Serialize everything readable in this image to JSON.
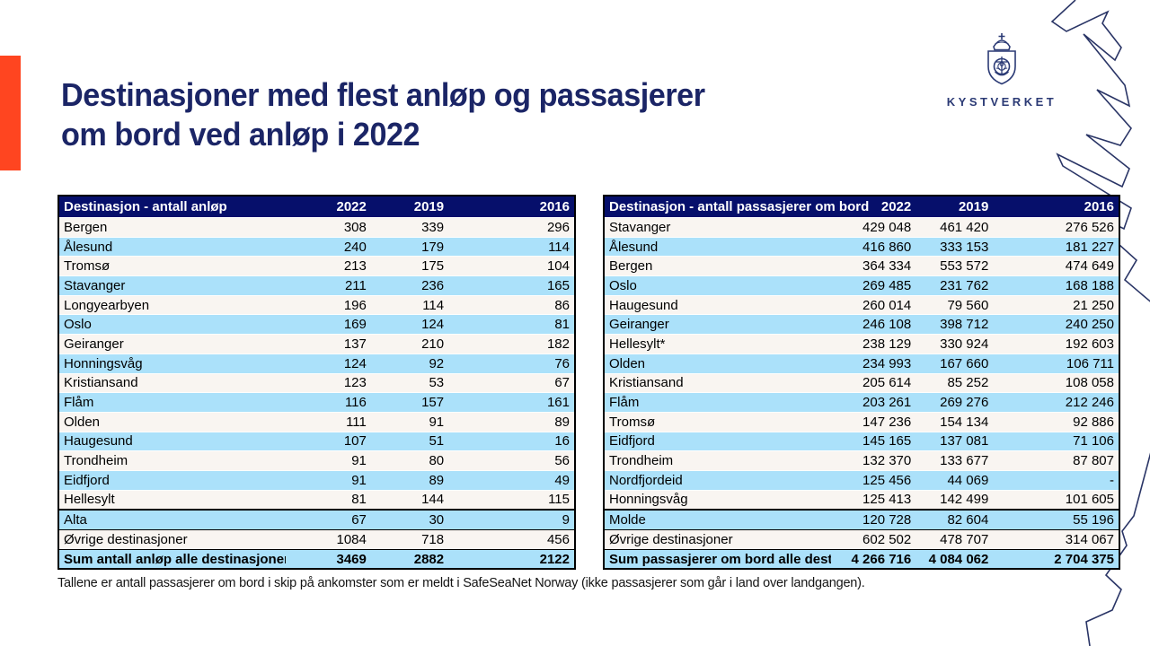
{
  "slide": {
    "title_line1": "Destinasjoner med flest anløp og passasjerer",
    "title_line2": "om bord ved anløp i 2022",
    "footnote": "Tallene er antall passasjerer om bord i skip på ankomster som er meldt i SafeSeaNet Norway (ikke passasjerer som går i land over landgangen).",
    "logo_text": "KYSTVERKET"
  },
  "colors": {
    "accent_bar": "#FF4520",
    "title_navy": "#1B2566",
    "table_header_bg": "#060F6B",
    "row_blue": "#ABE1FA",
    "row_white": "#F9F5F1",
    "logo_navy": "#2B3A75",
    "coastline": "#2A3566"
  },
  "tables": [
    {
      "header": "Destinasjon - antall anløp",
      "years": [
        "2022",
        "2019",
        "2016"
      ],
      "rows": [
        {
          "name": "Bergen",
          "values": [
            "308",
            "339",
            "296"
          ]
        },
        {
          "name": "Ålesund",
          "values": [
            "240",
            "179",
            "114"
          ]
        },
        {
          "name": "Tromsø",
          "values": [
            "213",
            "175",
            "104"
          ]
        },
        {
          "name": "Stavanger",
          "values": [
            "211",
            "236",
            "165"
          ]
        },
        {
          "name": "Longyearbyen",
          "values": [
            "196",
            "114",
            "86"
          ]
        },
        {
          "name": "Oslo",
          "values": [
            "169",
            "124",
            "81"
          ]
        },
        {
          "name": "Geiranger",
          "values": [
            "137",
            "210",
            "182"
          ]
        },
        {
          "name": "Honningsvåg",
          "values": [
            "124",
            "92",
            "76"
          ]
        },
        {
          "name": "Kristiansand",
          "values": [
            "123",
            "53",
            "67"
          ]
        },
        {
          "name": "Flåm",
          "values": [
            "116",
            "157",
            "161"
          ]
        },
        {
          "name": "Olden",
          "values": [
            "111",
            "91",
            "89"
          ]
        },
        {
          "name": "Haugesund",
          "values": [
            "107",
            "51",
            "16"
          ]
        },
        {
          "name": "Trondheim",
          "values": [
            "91",
            "80",
            "56"
          ]
        },
        {
          "name": "Eidfjord",
          "values": [
            "91",
            "89",
            "49"
          ]
        },
        {
          "name": "Hellesylt",
          "values": [
            "81",
            "144",
            "115"
          ]
        },
        {
          "name": "Alta",
          "values": [
            "67",
            "30",
            "9"
          ]
        },
        {
          "name": "Øvrige destinasjoner",
          "values": [
            "1084",
            "718",
            "456"
          ]
        },
        {
          "name": "Sum antall anløp alle destinasjoner",
          "values": [
            "3469",
            "2882",
            "2122"
          ]
        }
      ]
    },
    {
      "header": "Destinasjon - antall passasjerer om bord",
      "years": [
        "2022",
        "2019",
        "2016"
      ],
      "rows": [
        {
          "name": "Stavanger",
          "values": [
            "429 048",
            "461 420",
            "276 526"
          ]
        },
        {
          "name": "Ålesund",
          "values": [
            "416 860",
            "333 153",
            "181 227"
          ]
        },
        {
          "name": "Bergen",
          "values": [
            "364 334",
            "553 572",
            "474 649"
          ]
        },
        {
          "name": "Oslo",
          "values": [
            "269 485",
            "231 762",
            "168 188"
          ]
        },
        {
          "name": "Haugesund",
          "values": [
            "260 014",
            "79 560",
            "21 250"
          ]
        },
        {
          "name": "Geiranger",
          "values": [
            "246 108",
            "398 712",
            "240 250"
          ]
        },
        {
          "name": "Hellesylt*",
          "values": [
            "238 129",
            "330 924",
            "192 603"
          ]
        },
        {
          "name": "Olden",
          "values": [
            "234 993",
            "167 660",
            "106 711"
          ]
        },
        {
          "name": "Kristiansand",
          "values": [
            "205 614",
            "85 252",
            "108 058"
          ]
        },
        {
          "name": "Flåm",
          "values": [
            "203 261",
            "269 276",
            "212 246"
          ]
        },
        {
          "name": "Tromsø",
          "values": [
            "147 236",
            "154 134",
            "92 886"
          ]
        },
        {
          "name": "Eidfjord",
          "values": [
            "145 165",
            "137 081",
            "71 106"
          ]
        },
        {
          "name": "Trondheim",
          "values": [
            "132 370",
            "133 677",
            "87 807"
          ]
        },
        {
          "name": "Nordfjordeid",
          "values": [
            "125 456",
            "44 069",
            "-"
          ]
        },
        {
          "name": "Honningsvåg",
          "values": [
            "125 413",
            "142 499",
            "101 605"
          ]
        },
        {
          "name": "Molde",
          "values": [
            "120 728",
            "82 604",
            "55 196"
          ]
        },
        {
          "name": "Øvrige destinasjoner",
          "values": [
            "602 502",
            "478 707",
            "314 067"
          ]
        },
        {
          "name": "Sum passasjerer om bord alle destinasjoner",
          "values": [
            "4 266 716",
            "4 084 062",
            "2 704 375"
          ]
        }
      ]
    }
  ]
}
